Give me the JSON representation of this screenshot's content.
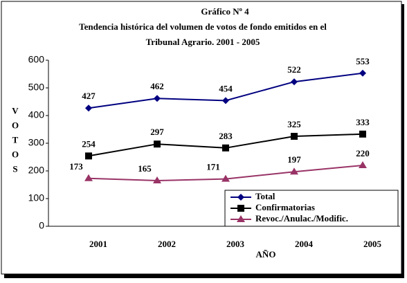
{
  "chart_data": {
    "type": "line",
    "title": [
      "Gráfico Nº 4",
      "Tendencia histórica del volumen de votos de fondo emitidos en el",
      "Tribunal Agrario. 2001 - 2005"
    ],
    "xlabel": "AÑO",
    "ylabel": "VOTOS",
    "categories": [
      "2001",
      "2002",
      "2003",
      "2004",
      "2005"
    ],
    "series": [
      {
        "name": "Total",
        "color": "#000080",
        "marker": "diamond",
        "values": [
          427,
          462,
          454,
          522,
          553
        ]
      },
      {
        "name": "Confirmatorias",
        "color": "#000000",
        "marker": "square",
        "values": [
          254,
          297,
          283,
          325,
          333
        ]
      },
      {
        "name": "Revoc./Anulac./Modific.",
        "color": "#993366",
        "marker": "triangle",
        "values": [
          173,
          165,
          171,
          197,
          220
        ]
      }
    ],
    "ylim": [
      0,
      600
    ],
    "yticks": [
      0,
      100,
      200,
      300,
      400,
      500,
      600
    ],
    "legend": "lower right"
  }
}
